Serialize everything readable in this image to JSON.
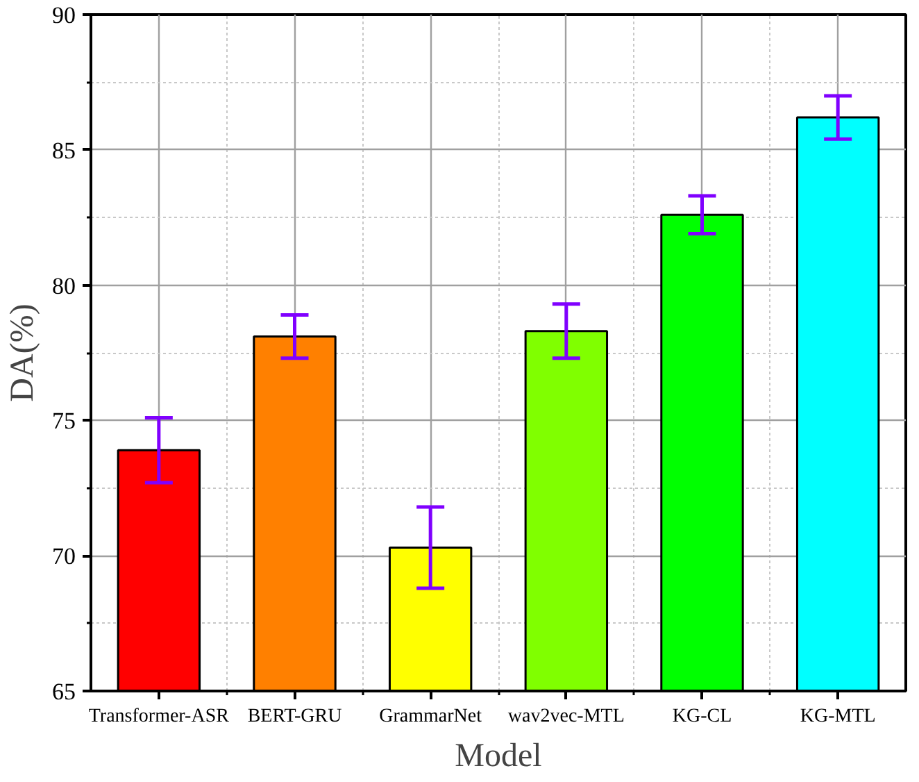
{
  "chart_data": {
    "type": "bar",
    "xlabel": "Model",
    "ylabel": "DA(%)",
    "categories": [
      "Transformer-ASR",
      "BERT-GRU",
      "GrammarNet",
      "wav2vec-MTL",
      "KG-CL",
      "KG-MTL"
    ],
    "values": [
      73.9,
      78.1,
      70.3,
      78.3,
      82.6,
      86.2
    ],
    "errors": [
      1.2,
      0.8,
      1.5,
      1.0,
      0.7,
      0.8
    ],
    "colors": [
      "#ff0000",
      "#ff8000",
      "#ffff00",
      "#80ff00",
      "#00ff00",
      "#00ffff"
    ],
    "ylim": [
      65,
      90
    ],
    "yticks": [
      65,
      70,
      75,
      80,
      85,
      90
    ],
    "grid": true
  }
}
